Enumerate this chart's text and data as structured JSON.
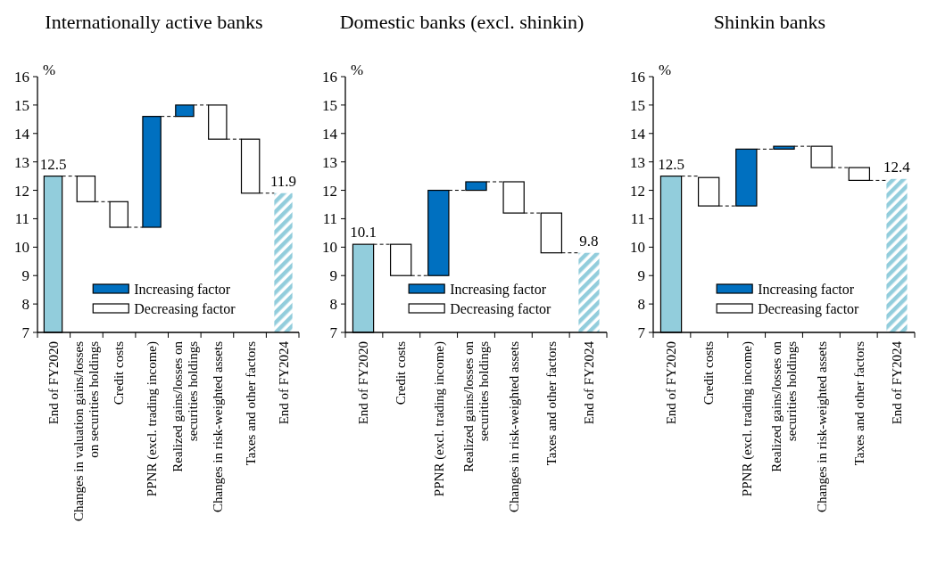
{
  "chart_data": [
    {
      "type": "bar",
      "title": "Internationally active banks",
      "ylabel": "%",
      "categories": [
        "End of FY2020",
        "Changes in valuation gains/losses on securities holdings",
        "Credit costs",
        "PPNR (excl. trading income)",
        "Realized gains/losses on securities holdings",
        "Changes in risk-weighted assets",
        "Taxes and other factors",
        "End of FY2024"
      ],
      "ylim": [
        7,
        16
      ],
      "yticks": [
        7,
        8,
        9,
        10,
        11,
        12,
        13,
        14,
        15,
        16
      ],
      "legend": "bottom",
      "series": [
        {
          "color": "#92cddc",
          "values": [
            12.5,
            null,
            null,
            null,
            null,
            null,
            null,
            null
          ],
          "value_labels": [
            "12.5",
            null,
            null,
            null,
            null,
            null,
            null,
            null
          ]
        },
        {
          "name": "Increasing factor",
          "color": "#0070c0",
          "base": [
            null,
            null,
            null,
            10.7,
            14.6,
            null,
            null,
            null
          ],
          "values": [
            null,
            null,
            null,
            3.9,
            0.4,
            null,
            null,
            null
          ]
        },
        {
          "name": "Decreasing factor",
          "color": "#ffffff",
          "base": [
            null,
            12.5,
            11.6,
            null,
            null,
            15.0,
            13.8,
            null
          ],
          "values": [
            null,
            -0.9,
            -0.9,
            null,
            null,
            -1.2,
            -1.9,
            null
          ]
        },
        {
          "color": "#92cddc",
          "values": [
            null,
            null,
            null,
            null,
            null,
            null,
            null,
            11.9
          ],
          "value_labels": [
            null,
            null,
            null,
            null,
            null,
            null,
            null,
            "11.9"
          ]
        }
      ]
    },
    {
      "type": "bar",
      "title": "Domestic banks (excl. shinkin)",
      "ylabel": "%",
      "categories": [
        "End of FY2020",
        "Credit costs",
        "PPNR (excl. trading income)",
        "Realized gains/losses on securities holdings",
        "Changes in risk-weighted assets",
        "Taxes and other factors",
        "End of FY2024"
      ],
      "ylim": [
        7,
        16
      ],
      "yticks": [
        7,
        8,
        9,
        10,
        11,
        12,
        13,
        14,
        15,
        16
      ],
      "legend": "bottom",
      "series": [
        {
          "color": "#92cddc",
          "values": [
            10.1,
            null,
            null,
            null,
            null,
            null,
            null
          ],
          "value_labels": [
            "10.1",
            null,
            null,
            null,
            null,
            null,
            null
          ]
        },
        {
          "name": "Increasing factor",
          "color": "#0070c0",
          "base": [
            null,
            null,
            9.0,
            12.0,
            null,
            null,
            null
          ],
          "values": [
            null,
            null,
            3.0,
            0.3,
            null,
            null,
            null
          ]
        },
        {
          "name": "Decreasing factor",
          "color": "#ffffff",
          "base": [
            null,
            10.1,
            null,
            null,
            12.3,
            11.2,
            null
          ],
          "values": [
            null,
            -1.1,
            null,
            null,
            -1.1,
            -1.4,
            null
          ]
        },
        {
          "color": "#92cddc",
          "values": [
            null,
            null,
            null,
            null,
            null,
            null,
            9.8
          ],
          "value_labels": [
            null,
            null,
            null,
            null,
            null,
            null,
            "9.8"
          ]
        }
      ]
    },
    {
      "type": "bar",
      "title": "Shinkin banks",
      "ylabel": "%",
      "categories": [
        "End of FY2020",
        "Credit costs",
        "PPNR (excl. trading income)",
        "Realized gains/losses on securities holdings",
        "Changes in risk-weighted assets",
        "Taxes and other factors",
        "End of FY2024"
      ],
      "ylim": [
        7,
        16
      ],
      "yticks": [
        7,
        8,
        9,
        10,
        11,
        12,
        13,
        14,
        15,
        16
      ],
      "legend": "bottom",
      "series": [
        {
          "color": "#92cddc",
          "values": [
            12.5,
            null,
            null,
            null,
            null,
            null,
            null
          ],
          "value_labels": [
            "12.5",
            null,
            null,
            null,
            null,
            null,
            null
          ]
        },
        {
          "name": "Increasing factor",
          "color": "#0070c0",
          "base": [
            null,
            null,
            11.45,
            13.45,
            null,
            null,
            null
          ],
          "values": [
            null,
            null,
            2.0,
            0.1,
            null,
            null,
            null
          ]
        },
        {
          "name": "Decreasing factor",
          "color": "#ffffff",
          "base": [
            null,
            12.45,
            null,
            null,
            13.55,
            12.8,
            null
          ],
          "values": [
            null,
            -1.0,
            null,
            null,
            -0.75,
            -0.45,
            null
          ]
        },
        {
          "color": "#92cddc",
          "values": [
            null,
            null,
            null,
            null,
            null,
            null,
            12.4
          ],
          "value_labels": [
            null,
            null,
            null,
            null,
            null,
            null,
            "12.4"
          ]
        }
      ]
    }
  ]
}
